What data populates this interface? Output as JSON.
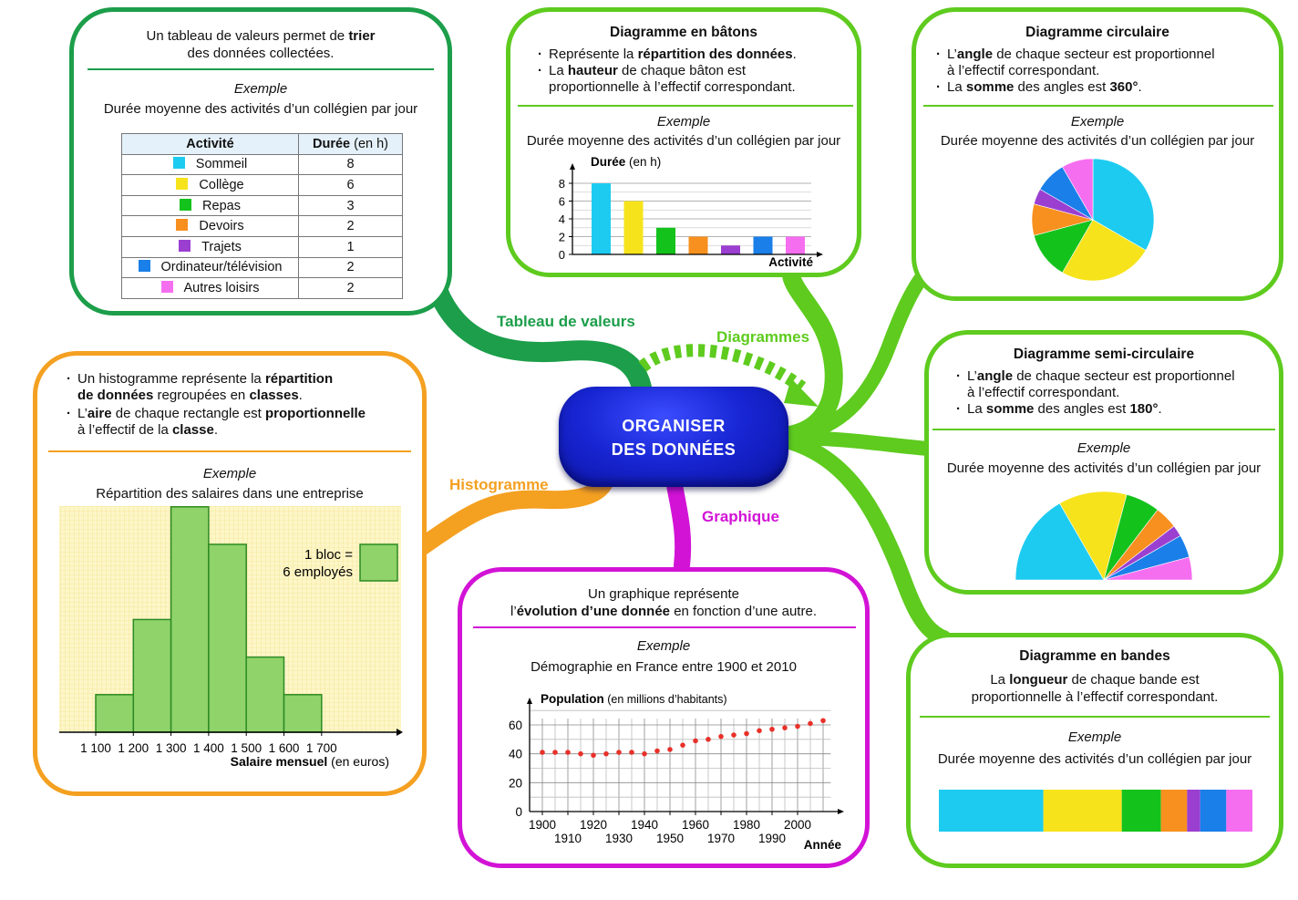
{
  "center": {
    "line1": "ORGANISER",
    "line2": "DES DONNÉES"
  },
  "branches": {
    "tableau": "Tableau de valeurs",
    "diagrammes": "Diagrammes",
    "histogramme": "Histogramme",
    "graphique": "Graphique"
  },
  "colors": {
    "sommeil": "#1ecbf0",
    "college": "#f7e31b",
    "repas": "#14c21c",
    "devoirs": "#f7901e",
    "trajets": "#9b3fd1",
    "ordinateur": "#1a7fe8",
    "loisirs": "#f56ef0"
  },
  "tableau": {
    "intro_pre": "Un tableau de valeurs permet de ",
    "intro_kw": "trier",
    "intro_line2": "des données collectées.",
    "example_label": "Exemple",
    "example_title": "Durée moyenne des activités d’un collégien par jour",
    "col1": "Activité",
    "col2_kw": "Durée",
    "col2_unit": " (en h)",
    "rows": [
      {
        "label": "Sommeil",
        "value": "8"
      },
      {
        "label": "Collège",
        "value": "6"
      },
      {
        "label": "Repas",
        "value": "3"
      },
      {
        "label": "Devoirs",
        "value": "2"
      },
      {
        "label": "Trajets",
        "value": "1"
      },
      {
        "label": "Ordinateur/télévision",
        "value": "2"
      },
      {
        "label": "Autres loisirs",
        "value": "2"
      }
    ]
  },
  "batons": {
    "title": "Diagramme en bâtons",
    "b1_pre": "Représente la ",
    "b1_kw": "répartition des données",
    "b1_post": ".",
    "b2_pre": "La ",
    "b2_kw": "hauteur",
    "b2_post": " de chaque bâton est",
    "b2_line2": "proportionnelle à l’effectif correspondant.",
    "example_label": "Exemple",
    "example_title": "Durée moyenne des activités d’un collégien par jour",
    "ylabel_kw": "Durée",
    "ylabel_unit": " (en h)",
    "xlabel": "Activité"
  },
  "circulaire": {
    "title": "Diagramme circulaire",
    "b1_pre": "L’",
    "b1_kw": "angle",
    "b1_post": " de chaque secteur est proportionnel",
    "b1_line2": "à l’effectif correspondant.",
    "b2_pre": "La ",
    "b2_kw": "somme",
    "b2_mid": " des angles est ",
    "b2_kw2": "360°",
    "b2_post": ".",
    "example_label": "Exemple",
    "example_title": "Durée moyenne des activités d’un collégien par jour"
  },
  "semi": {
    "title": "Diagramme semi-circulaire",
    "b1_pre": "L’",
    "b1_kw": "angle",
    "b1_post": " de chaque secteur est proportionnel",
    "b1_line2": "à l’effectif correspondant.",
    "b2_pre": "La ",
    "b2_kw": "somme",
    "b2_mid": " des angles est ",
    "b2_kw2": "180°",
    "b2_post": ".",
    "example_label": "Exemple",
    "example_title": "Durée moyenne des activités d’un collégien par jour"
  },
  "bandes": {
    "title": "Diagramme en bandes",
    "l1_pre": "La ",
    "l1_kw": "longueur",
    "l1_post": " de chaque bande est",
    "l2": "proportionnelle à l’effectif correspondant.",
    "example_label": "Exemple",
    "example_title": "Durée moyenne des activités d’un collégien par jour"
  },
  "histo": {
    "b1_pre": "Un histogramme représente la ",
    "b1_kw": "répartition",
    "b1_l2_kw": "de données",
    "b1_l2_mid": " regroupées en ",
    "b1_l2_kw2": "classes",
    "b1_l2_post": ".",
    "b2_pre": "L’",
    "b2_kw": "aire",
    "b2_mid": " de chaque rectangle est ",
    "b2_kw2": "proportionnelle",
    "b2_l2_pre": "à l’effectif de la ",
    "b2_l2_kw": "classe",
    "b2_l2_post": ".",
    "example_label": "Exemple",
    "example_title": "Répartition des salaires dans une entreprise",
    "legend_l1": "1 bloc =",
    "legend_l2": "6 employés",
    "xlabel_kw": "Salaire mensuel",
    "xlabel_unit": " (en euros)"
  },
  "graphique": {
    "l1": "Un graphique représente",
    "l2_pre": "l’",
    "l2_kw": "évolution d’une donnée",
    "l2_post": " en fonction d’une autre.",
    "example_label": "Exemple",
    "example_title": "Démographie en France entre 1900 et 2010",
    "ylabel_kw": "Population",
    "ylabel_unit": " (en millions d’habitants)",
    "xlabel": "Année"
  },
  "chart_data": [
    {
      "id": "batons",
      "type": "bar",
      "categories": [
        "Sommeil",
        "Collège",
        "Repas",
        "Devoirs",
        "Trajets",
        "Ordinateur/télévision",
        "Autres loisirs"
      ],
      "values": [
        8,
        6,
        3,
        2,
        1,
        2,
        2
      ],
      "ylim": [
        0,
        9
      ],
      "yticks": [
        0,
        2,
        4,
        6,
        8
      ],
      "grid": true
    },
    {
      "id": "circulaire",
      "type": "pie",
      "categories": [
        "Sommeil",
        "Collège",
        "Repas",
        "Devoirs",
        "Trajets",
        "Ordinateur/télévision",
        "Autres loisirs"
      ],
      "values": [
        8,
        6,
        3,
        2,
        1,
        2,
        2
      ]
    },
    {
      "id": "semi",
      "type": "pie",
      "subtype": "semi-circle",
      "categories": [
        "Sommeil",
        "Collège",
        "Repas",
        "Devoirs",
        "Trajets",
        "Ordinateur/télévision",
        "Autres loisirs"
      ],
      "values": [
        8,
        6,
        3,
        2,
        1,
        2,
        2
      ]
    },
    {
      "id": "bandes",
      "type": "bar",
      "subtype": "stacked-band",
      "categories": [
        "Sommeil",
        "Collège",
        "Repas",
        "Devoirs",
        "Trajets",
        "Ordinateur/télévision",
        "Autres loisirs"
      ],
      "values": [
        8,
        6,
        3,
        2,
        1,
        2,
        2
      ]
    },
    {
      "id": "histogramme",
      "type": "bar",
      "subtype": "histogram",
      "bins": [
        [
          1100,
          1200
        ],
        [
          1200,
          1300
        ],
        [
          1300,
          1400
        ],
        [
          1400,
          1500
        ],
        [
          1500,
          1600
        ],
        [
          1600,
          1700
        ]
      ],
      "tick_labels": [
        "1 100",
        "1 200",
        "1 300",
        "1 400",
        "1 500",
        "1 600",
        "1 700"
      ],
      "blocks": [
        2,
        6,
        12,
        10,
        4,
        2
      ]
    },
    {
      "id": "graphique",
      "type": "scatter",
      "x": [
        1900,
        1905,
        1910,
        1915,
        1920,
        1925,
        1930,
        1935,
        1940,
        1945,
        1950,
        1955,
        1960,
        1965,
        1970,
        1975,
        1980,
        1985,
        1990,
        1995,
        2000,
        2005,
        2010
      ],
      "y": [
        41,
        41,
        41,
        40,
        39,
        40,
        41,
        41,
        40,
        42,
        43,
        46,
        49,
        50,
        52,
        53,
        54,
        56,
        57,
        58,
        59,
        61,
        63
      ],
      "xlim": [
        1900,
        2010
      ],
      "ylim": [
        0,
        65
      ],
      "yticks": [
        0,
        20,
        40,
        60
      ],
      "xticks_top": [
        "1900",
        "1920",
        "1940",
        "1960",
        "1980",
        "2000"
      ],
      "xticks_bottom": [
        "1910",
        "1930",
        "1950",
        "1970",
        "1990"
      ],
      "grid": true
    }
  ]
}
